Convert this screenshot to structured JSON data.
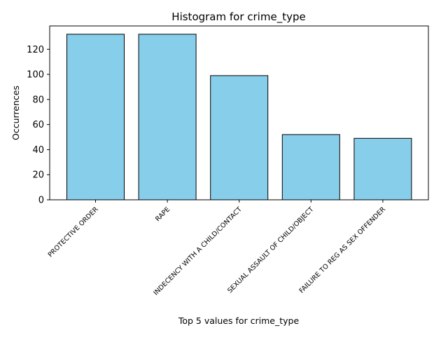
{
  "chart_data": {
    "type": "bar",
    "title": "Histogram for crime_type",
    "xlabel": "Top 5 values for crime_type",
    "ylabel": "Occurrences",
    "categories": [
      "PROTECTIVE ORDER",
      "RAPE",
      "INDECENCY WITH A CHILD/CONTACT",
      "SEXUAL ASSAULT OF CHILD/OBJECT",
      "FAILURE TO REG AS SEX OFFENDER"
    ],
    "values": [
      132,
      132,
      99,
      52,
      49
    ],
    "yticks": [
      0,
      20,
      40,
      60,
      80,
      100,
      120
    ],
    "ylim": [
      0,
      138.6
    ],
    "bar_color": "#87CEEB",
    "edge_color": "#000000",
    "grid": false,
    "legend": false
  }
}
